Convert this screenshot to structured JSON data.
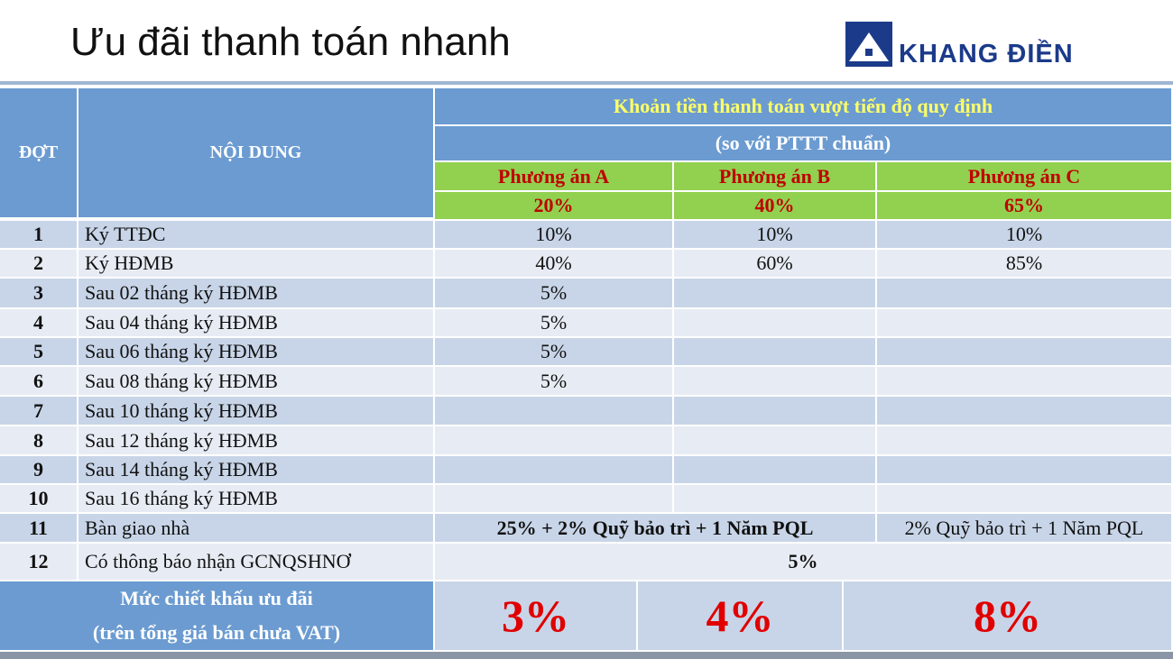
{
  "header": {
    "title": "Ưu đãi thanh toán nhanh",
    "logo": "KHANG ĐIỀN"
  },
  "table": {
    "col_no": "ĐỢT",
    "col_content": "NỘI DUNG",
    "group_title": "Khoản tiền thanh toán vượt tiến độ quy định",
    "group_subtitle": "(so với PTTT chuẩn)",
    "options": [
      {
        "name": "Phương án A",
        "percent": "20%"
      },
      {
        "name": "Phương án B",
        "percent": "40%"
      },
      {
        "name": "Phương án C",
        "percent": "65%"
      }
    ],
    "rows": [
      {
        "no": "1",
        "content": "Ký TTĐC",
        "a": "10%",
        "b": "10%",
        "c": "10%"
      },
      {
        "no": "2",
        "content": "Ký HĐMB",
        "a": "40%",
        "b": "60%",
        "c": "85%"
      },
      {
        "no": "3",
        "content": "Sau 02 tháng ký HĐMB",
        "a": "5%"
      },
      {
        "no": "4",
        "content": "Sau 04 tháng ký HĐMB",
        "a": "5%"
      },
      {
        "no": "5",
        "content": "Sau 06 tháng ký HĐMB",
        "a": "5%"
      },
      {
        "no": "6",
        "content": "Sau 08 tháng ký HĐMB",
        "a": "5%"
      },
      {
        "no": "7",
        "content": "Sau 10 tháng ký HĐMB"
      },
      {
        "no": "8",
        "content": "Sau 12 tháng ký HĐMB"
      },
      {
        "no": "9",
        "content": "Sau 14 tháng ký HĐMB"
      },
      {
        "no": "10",
        "content": "Sau 16 tháng ký HĐMB"
      },
      {
        "no": "11",
        "content": "Bàn giao nhà",
        "ab": "25% + 2% Quỹ bảo trì + 1 Năm PQL",
        "c": "2% Quỹ bảo trì + 1 Năm PQL"
      },
      {
        "no": "12",
        "content": "Có thông báo nhận GCNQSHNƠ",
        "abc": "5%"
      }
    ],
    "footer": {
      "label_1": "Mức chiết khấu ưu đãi",
      "label_2": "(trên tổng giá bán chưa VAT)",
      "discounts": [
        "3%",
        "4%",
        "8%"
      ]
    }
  }
}
